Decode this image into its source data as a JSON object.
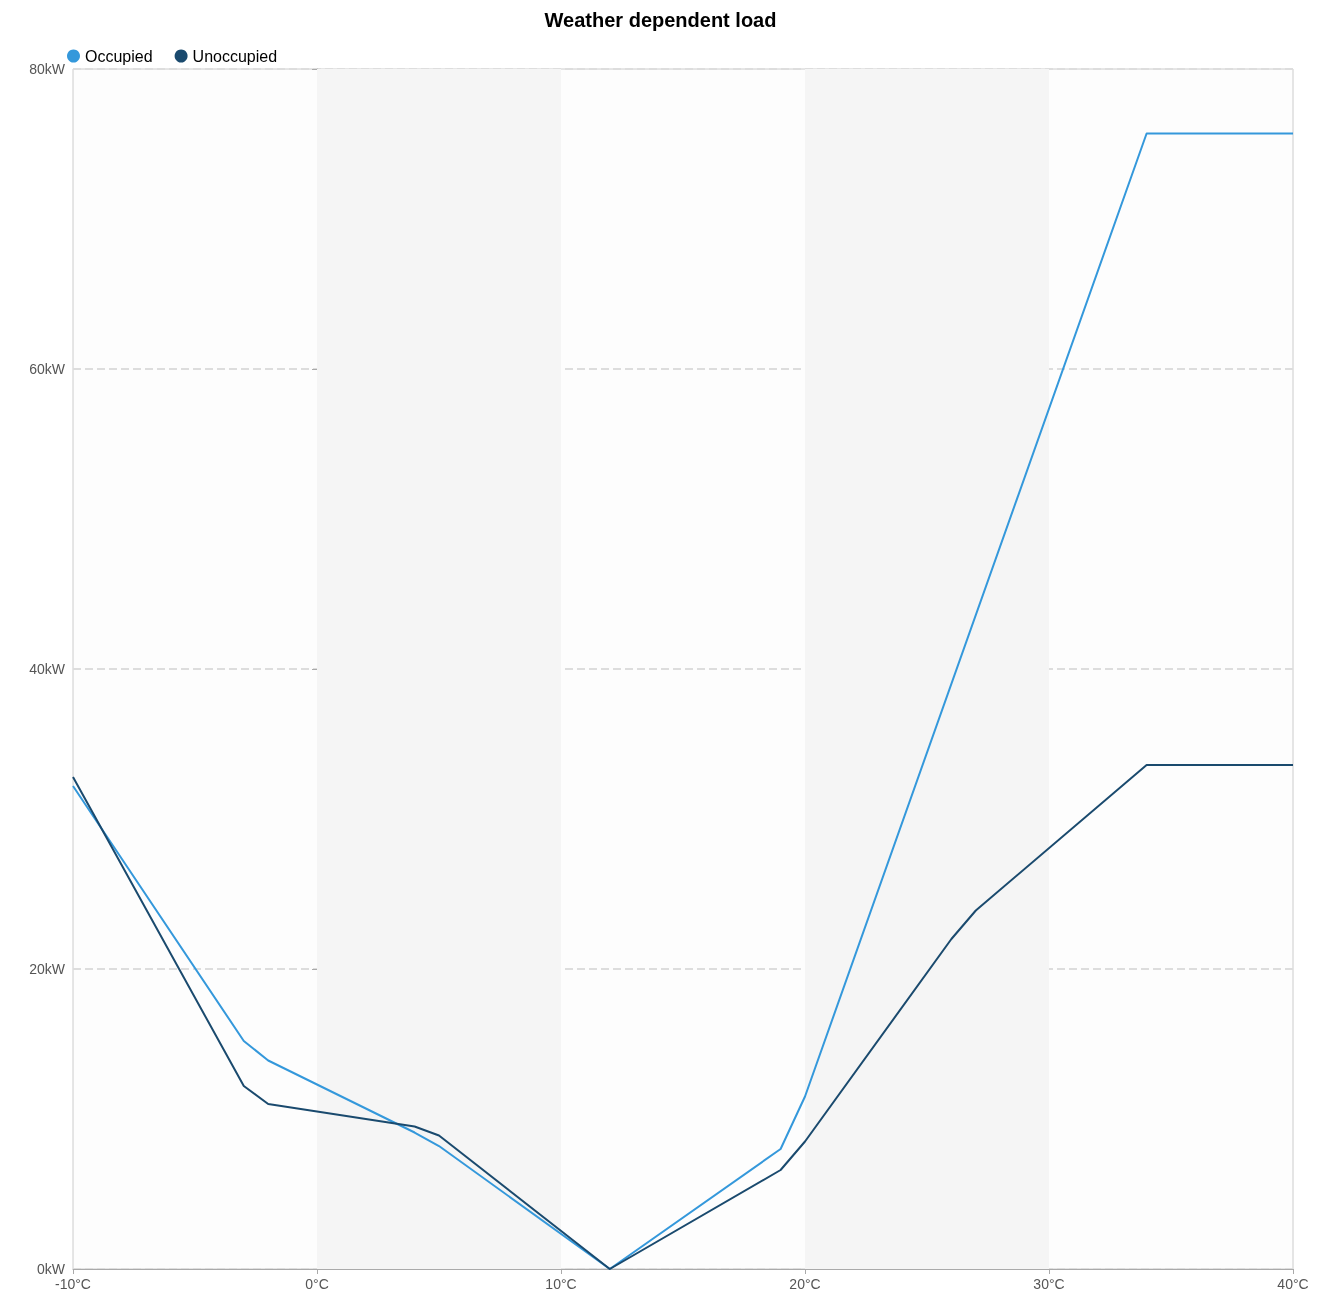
{
  "chart_data": {
    "type": "line",
    "title": "Weather dependent load",
    "xlim": [
      -10,
      40
    ],
    "xticks": [
      {
        "value": -10,
        "label": "-10°C"
      },
      {
        "value": 0,
        "label": "0°C"
      },
      {
        "value": 10,
        "label": "10°C"
      },
      {
        "value": 20,
        "label": "20°C"
      },
      {
        "value": 30,
        "label": "30°C"
      },
      {
        "value": 40,
        "label": "40°C"
      }
    ],
    "ylim": [
      0,
      80
    ],
    "yticks": [
      {
        "value": 0,
        "label": "0kW"
      },
      {
        "value": 20,
        "label": "20kW"
      },
      {
        "value": 40,
        "label": "40kW"
      },
      {
        "value": 60,
        "label": "60kW"
      },
      {
        "value": 80,
        "label": "80kW"
      }
    ],
    "series": [
      {
        "name": "Occupied",
        "color": "#3498db",
        "x": [
          -10,
          -3,
          -2,
          4,
          5,
          12,
          19,
          20,
          34,
          40
        ],
        "values": [
          32.2,
          15.2,
          13.9,
          9.1,
          8.2,
          0,
          8.0,
          11.5,
          75.7,
          75.7
        ]
      },
      {
        "name": "Unoccupied",
        "color": "#1a4a6e",
        "x": [
          -10,
          -3,
          -2,
          4,
          5,
          12,
          19,
          20,
          26,
          27,
          34,
          40
        ],
        "values": [
          32.8,
          12.2,
          11.0,
          9.5,
          8.9,
          0,
          6.6,
          8.5,
          22.0,
          23.9,
          33.6,
          33.6
        ]
      }
    ],
    "bands": [
      {
        "axis": "x",
        "from": 0,
        "to": 10,
        "color": "#f5f5f5"
      },
      {
        "axis": "x",
        "from": 20,
        "to": 30,
        "color": "#f5f5f5"
      }
    ],
    "grid": "y",
    "legend": "top left",
    "marker": "none",
    "line_style": "solid"
  }
}
